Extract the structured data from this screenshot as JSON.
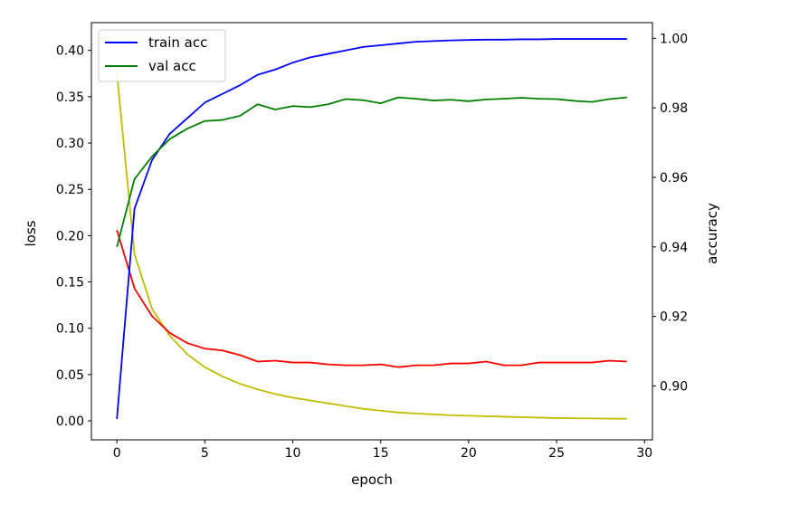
{
  "chart_data": {
    "type": "line",
    "xlabel": "epoch",
    "ylabel_left": "loss",
    "ylabel_right": "accuracy",
    "xlim": [
      -1.45,
      30.45
    ],
    "ylim_left": [
      -0.0205,
      0.43
    ],
    "ylim_right": [
      0.8845,
      1.0045
    ],
    "x_ticks": [
      0,
      5,
      10,
      15,
      20,
      25,
      30
    ],
    "y_ticks_left": [
      "0.00",
      "0.05",
      "0.10",
      "0.15",
      "0.20",
      "0.25",
      "0.30",
      "0.35",
      "0.40"
    ],
    "y_ticks_right": [
      "0.90",
      "0.92",
      "0.94",
      "0.96",
      "0.98",
      "1.00"
    ],
    "legend": {
      "placement": "top-left",
      "entries": [
        {
          "label": "train acc",
          "color": "#0000ff"
        },
        {
          "label": "val acc",
          "color": "#008000"
        }
      ]
    },
    "x": [
      0,
      1,
      2,
      3,
      4,
      5,
      6,
      7,
      8,
      9,
      10,
      11,
      12,
      13,
      14,
      15,
      16,
      17,
      18,
      19,
      20,
      21,
      22,
      23,
      24,
      25,
      26,
      27,
      28,
      29
    ],
    "series": [
      {
        "axis": "left",
        "color": "#bfbf00",
        "values": [
          0.375,
          0.18,
          0.121,
          0.092,
          0.072,
          0.058,
          0.048,
          0.04,
          0.034,
          0.029,
          0.025,
          0.022,
          0.019,
          0.016,
          0.013,
          0.011,
          0.009,
          0.008,
          0.007,
          0.006,
          0.0055,
          0.005,
          0.0045,
          0.004,
          0.0035,
          0.003,
          0.0028,
          0.0026,
          0.0024,
          0.0022
        ]
      },
      {
        "axis": "left",
        "color": "#ff0000",
        "values": [
          0.206,
          0.143,
          0.113,
          0.095,
          0.084,
          0.078,
          0.076,
          0.071,
          0.064,
          0.065,
          0.063,
          0.063,
          0.061,
          0.06,
          0.06,
          0.061,
          0.058,
          0.06,
          0.06,
          0.062,
          0.062,
          0.064,
          0.06,
          0.06,
          0.063,
          0.063,
          0.063,
          0.063,
          0.065,
          0.064
        ]
      },
      {
        "axis": "right",
        "name": "train acc",
        "color": "#0000ff",
        "values": [
          0.8905,
          0.951,
          0.965,
          0.9725,
          0.977,
          0.9815,
          0.984,
          0.9865,
          0.9895,
          0.991,
          0.993,
          0.9945,
          0.9955,
          0.9965,
          0.9975,
          0.998,
          0.9985,
          0.999,
          0.9992,
          0.9994,
          0.9995,
          0.9996,
          0.9996,
          0.9997,
          0.9997,
          0.9998,
          0.9998,
          0.9998,
          0.9998,
          0.9998
        ]
      },
      {
        "axis": "right",
        "name": "val acc",
        "color": "#008000",
        "values": [
          0.94,
          0.9595,
          0.966,
          0.971,
          0.974,
          0.9762,
          0.9765,
          0.9777,
          0.981,
          0.9795,
          0.9805,
          0.9802,
          0.981,
          0.9825,
          0.9822,
          0.9813,
          0.983,
          0.9826,
          0.9821,
          0.9823,
          0.9819,
          0.9824,
          0.9826,
          0.9829,
          0.9826,
          0.9825,
          0.982,
          0.9817,
          0.9825,
          0.983
        ]
      }
    ]
  }
}
